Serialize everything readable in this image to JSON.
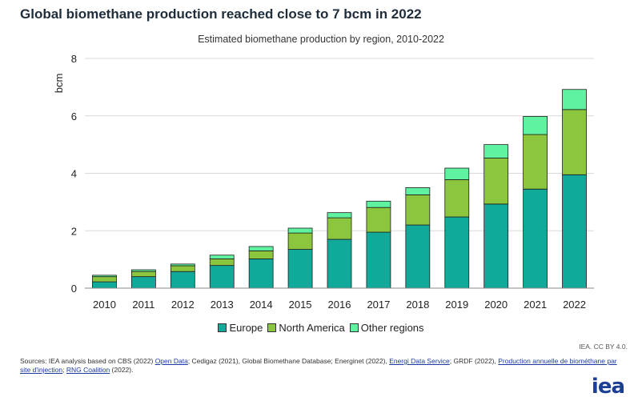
{
  "header": {
    "title": "Global biomethane production reached close to 7 bcm in 2022",
    "subtitle": "Estimated biomethane production by region, 2010-2022"
  },
  "chart_data": {
    "type": "bar",
    "stacked": true,
    "categories": [
      "2010",
      "2011",
      "2012",
      "2013",
      "2014",
      "2015",
      "2016",
      "2017",
      "2018",
      "2019",
      "2020",
      "2021",
      "2022"
    ],
    "series": [
      {
        "name": "Europe",
        "color": "#10a99a",
        "values": [
          0.22,
          0.4,
          0.58,
          0.79,
          1.02,
          1.35,
          1.7,
          1.95,
          2.2,
          2.48,
          2.93,
          3.45,
          3.95
        ]
      },
      {
        "name": "North America",
        "color": "#8cc63f",
        "values": [
          0.18,
          0.18,
          0.2,
          0.23,
          0.28,
          0.57,
          0.75,
          0.86,
          1.05,
          1.3,
          1.6,
          1.9,
          2.27
        ]
      },
      {
        "name": "Other regions",
        "color": "#5ff2a0",
        "values": [
          0.05,
          0.06,
          0.06,
          0.13,
          0.15,
          0.17,
          0.18,
          0.22,
          0.25,
          0.4,
          0.47,
          0.63,
          0.7
        ]
      }
    ],
    "ylabel": "bcm",
    "ylim": [
      0,
      8
    ],
    "yticks": [
      0,
      2,
      4,
      6,
      8
    ],
    "grid": true,
    "legend": "bottom-center"
  },
  "legend": {
    "items": [
      {
        "label": "Europe",
        "color": "#10a99a"
      },
      {
        "label": "North America",
        "color": "#8cc63f"
      },
      {
        "label": "Other regions",
        "color": "#5ff2a0"
      }
    ]
  },
  "footer": {
    "credit": "IEA. CC BY 4.0.",
    "sources_prefix": "Sources: IEA analysis based on CBS (2022) ",
    "link_open_data": "Open Data",
    "sources_mid1": "; Cedigaz (2021), Global Biomethane Database; Energinet (2022), ",
    "link_energi": "Energi Data Service",
    "sources_mid2": "; GRDF (2022), ",
    "link_production": "Production annuelle de biométhane par site d'injection",
    "sources_mid3": "; ",
    "link_rng": "RNG Coalition",
    "sources_end": " (2022).",
    "logo": "iea"
  }
}
